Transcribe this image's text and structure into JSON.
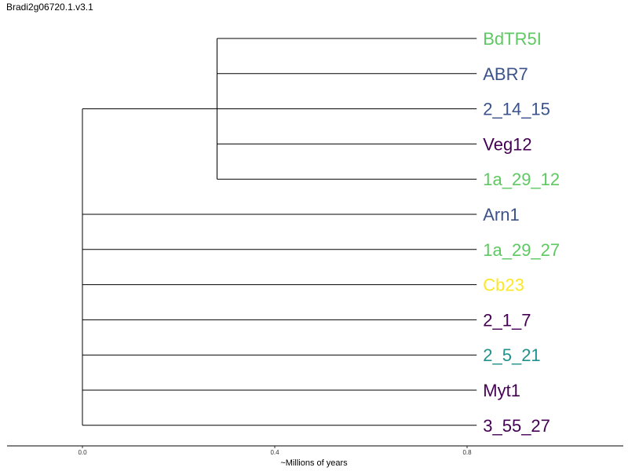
{
  "title": "Bradi2g06720.1.v3.1",
  "axis": {
    "label": "~Millions of years",
    "ticks": [
      "0.0",
      "0.4",
      "0.8"
    ],
    "tick_values": [
      0.0,
      0.4,
      0.8
    ]
  },
  "tree": {
    "root_x": 0.0,
    "clade_node_x": 0.28,
    "tip_x": 0.82,
    "clade_tips": [
      {
        "name": "BdTR5I",
        "color": "#5ec962"
      },
      {
        "name": "ABR7",
        "color": "#3b528b"
      },
      {
        "name": "2_14_15",
        "color": "#3b528b"
      },
      {
        "name": "Veg12",
        "color": "#440154"
      },
      {
        "name": "1a_29_12",
        "color": "#5ec962"
      }
    ],
    "root_tips": [
      {
        "name": "Arn1",
        "color": "#3b528b"
      },
      {
        "name": "1a_29_27",
        "color": "#5ec962"
      },
      {
        "name": "Cb23",
        "color": "#fde725"
      },
      {
        "name": "2_1_7",
        "color": "#440154"
      },
      {
        "name": "2_5_21",
        "color": "#21918c"
      },
      {
        "name": "Myt1",
        "color": "#440154"
      },
      {
        "name": "3_55_27",
        "color": "#440154"
      }
    ]
  }
}
